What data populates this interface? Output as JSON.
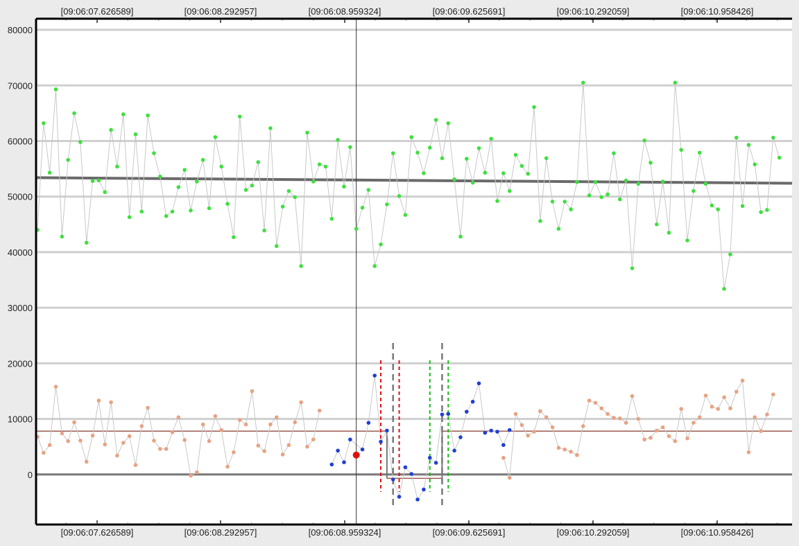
{
  "chart_data": {
    "type": "scatter",
    "title": "",
    "x_ticks": [
      "[09:06:07.626589]",
      "[09:06:08.292957]",
      "[09:06:08.959324]",
      "[09:06:09.625691]",
      "[09:06:10.292059]",
      "[09:06:10.958426]"
    ],
    "y_ticks": [
      "80000",
      "70000",
      "60000",
      "50000",
      "40000",
      "30000",
      "20000",
      "10000",
      "0"
    ],
    "ylim": [
      -9000,
      82000
    ],
    "xlim": [
      0,
      124
    ],
    "grid": true,
    "cursor": {
      "x": 52,
      "value": 3500
    },
    "series": [
      {
        "color": "#3ee03e",
        "values": [
          44000,
          63200,
          54300,
          69300,
          42800,
          56600,
          65000,
          59800,
          41700,
          52800,
          52900,
          50800,
          62000,
          55400,
          64800,
          46300,
          61200,
          47300,
          64600,
          57800,
          53600,
          46500,
          47300,
          51700,
          54800,
          47500,
          52700,
          56600,
          47900,
          60700,
          55400,
          48700,
          42700,
          64400,
          51200,
          52000,
          56200,
          43900,
          62300,
          41100,
          48200,
          51000,
          49900,
          37500,
          61500,
          52700,
          55800,
          55400,
          46000,
          60200,
          51800,
          58900,
          44200,
          48000,
          51200,
          37500,
          41400,
          48600,
          57800,
          50100,
          46700,
          60700,
          57900,
          54200,
          58800,
          63800,
          56900,
          63200,
          53100,
          42800,
          56800,
          52500,
          58700,
          54300,
          60400,
          49200,
          54200,
          51000,
          57500,
          55500,
          54100,
          66100,
          45600,
          56900,
          49100,
          44200,
          49100,
          47700,
          52600,
          70500,
          50200,
          52600,
          49900,
          50400,
          57800,
          49500,
          52900,
          37100,
          52300,
          60100,
          56100,
          45000,
          52700,
          43500,
          70500,
          58400,
          42100,
          51000,
          57900,
          52300,
          48400,
          47700,
          33400,
          39600,
          60600,
          48300,
          59300,
          55800,
          47200,
          47600,
          60600,
          57000
        ]
      },
      {
        "color": "#e8a282",
        "values": [
          6800,
          3900,
          5300,
          15800,
          7400,
          6000,
          9400,
          6100,
          2300,
          7000,
          13300,
          5400,
          13000,
          3400,
          5700,
          6900,
          1700,
          8700,
          12000,
          6100,
          4600,
          4600,
          7600,
          10300,
          6200,
          -200,
          400,
          9000,
          6000,
          10500,
          8000,
          1400,
          4000,
          9800,
          9000,
          15000,
          5200,
          4200,
          9000,
          10300,
          3600,
          5300,
          9400,
          13000,
          5000,
          6300,
          11500,
          null,
          null,
          null,
          null,
          null,
          null,
          null,
          null,
          null,
          null,
          null,
          null,
          null,
          null,
          null,
          null,
          null,
          null,
          null,
          null,
          null,
          null,
          null,
          null,
          null,
          null,
          null,
          null,
          null,
          null,
          null,
          null,
          null,
          null,
          null,
          null,
          null,
          null,
          null,
          null,
          null,
          null,
          null,
          null,
          null,
          null,
          null,
          null,
          null,
          null,
          null,
          null,
          null,
          null,
          null,
          null,
          null,
          null,
          null,
          null,
          null,
          null,
          null,
          null,
          null,
          null,
          null,
          null,
          null,
          null,
          null,
          null,
          null,
          null,
          null
        ]
      },
      {
        "color": "#e8a282",
        "values_from_x": 76,
        "values": [
          3000,
          -600,
          10900,
          8900,
          7000,
          7700,
          11400,
          10300,
          8500,
          4800,
          4500,
          4100,
          3500,
          8700,
          13300,
          12900,
          11900,
          10900,
          10200,
          10100,
          9300,
          14100,
          10000,
          6300,
          6600,
          7900,
          8500,
          6900,
          6000,
          11800,
          6500,
          9300,
          10300,
          14200,
          12200,
          11800,
          13900,
          11900,
          14900,
          16900,
          4000,
          10300,
          7800,
          10800,
          14400
        ]
      },
      {
        "color": "#1f3fd6",
        "points": [
          [
            48,
            1800
          ],
          [
            49,
            4300
          ],
          [
            50,
            2200
          ],
          [
            51,
            6300
          ],
          [
            53,
            4500
          ],
          [
            54,
            9300
          ],
          [
            55,
            17800
          ],
          [
            56,
            5900
          ],
          [
            57,
            7900
          ],
          [
            58,
            -900
          ],
          [
            59,
            -4000
          ],
          [
            60,
            1300
          ],
          [
            61,
            100
          ],
          [
            62,
            -4500
          ],
          [
            63,
            -2700
          ],
          [
            64,
            3000
          ],
          [
            65,
            2100
          ],
          [
            66,
            10800
          ],
          [
            67,
            10900
          ],
          [
            68,
            4300
          ],
          [
            69,
            6700
          ],
          [
            70,
            11300
          ],
          [
            71,
            13100
          ],
          [
            72,
            16400
          ],
          [
            73,
            7500
          ],
          [
            74,
            7900
          ],
          [
            75,
            7700
          ],
          [
            76,
            5300
          ],
          [
            77,
            8000
          ]
        ]
      }
    ],
    "trend_line": {
      "from": 53400,
      "to": 52400
    },
    "baseline_value": 0,
    "step_line": {
      "value": 7800,
      "gap_from": 57,
      "gap_to": 66,
      "gap_value": -700
    },
    "markers": {
      "gray_dashed": [
        58,
        66
      ],
      "red_dashed": [
        56,
        59
      ],
      "green_dashed": [
        64,
        67
      ]
    }
  }
}
